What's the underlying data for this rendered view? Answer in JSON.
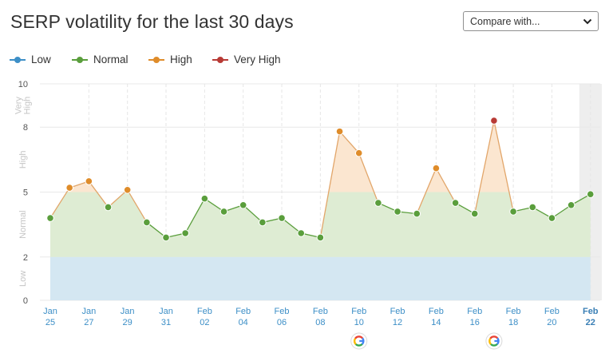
{
  "header": {
    "title": "SERP volatility for the last 30 days",
    "compare_label": "Compare with..."
  },
  "legend": [
    {
      "label": "Low",
      "color": "#3d8fc7"
    },
    {
      "label": "Normal",
      "color": "#5a9e3c"
    },
    {
      "label": "High",
      "color": "#df8c2a"
    },
    {
      "label": "Very High",
      "color": "#b83a35"
    }
  ],
  "zone_colors": {
    "low": "#d4e7f2",
    "normal": "#deecd3",
    "high": "#fbe6d0",
    "very_high": "#f6d7d3"
  },
  "google_update_icon": "google-g-icon",
  "chart_data": {
    "type": "area",
    "ylim": [
      0,
      10
    ],
    "yticks": [
      0,
      2,
      5,
      8,
      10
    ],
    "zones": [
      {
        "label": "Low",
        "from": 0,
        "to": 2
      },
      {
        "label": "Normal",
        "from": 2,
        "to": 5
      },
      {
        "label": "High",
        "from": 5,
        "to": 8
      },
      {
        "label": "Very High",
        "from": 8,
        "to": 10
      }
    ],
    "x_ticks": [
      {
        "idx": 0,
        "label": "Jan",
        "day": "25",
        "today": false
      },
      {
        "idx": 2,
        "label": "Jan",
        "day": "27",
        "today": false
      },
      {
        "idx": 4,
        "label": "Jan",
        "day": "29",
        "today": false
      },
      {
        "idx": 6,
        "label": "Jan",
        "day": "31",
        "today": false
      },
      {
        "idx": 8,
        "label": "Feb",
        "day": "02",
        "today": false
      },
      {
        "idx": 10,
        "label": "Feb",
        "day": "04",
        "today": false
      },
      {
        "idx": 12,
        "label": "Feb",
        "day": "06",
        "today": false
      },
      {
        "idx": 14,
        "label": "Feb",
        "day": "08",
        "today": false
      },
      {
        "idx": 16,
        "label": "Feb",
        "day": "10",
        "today": false
      },
      {
        "idx": 18,
        "label": "Feb",
        "day": "12",
        "today": false
      },
      {
        "idx": 20,
        "label": "Feb",
        "day": "14",
        "today": false
      },
      {
        "idx": 22,
        "label": "Feb",
        "day": "16",
        "today": false
      },
      {
        "idx": 24,
        "label": "Feb",
        "day": "18",
        "today": false
      },
      {
        "idx": 26,
        "label": "Feb",
        "day": "20",
        "today": false
      },
      {
        "idx": 28,
        "label": "Feb",
        "day": "22",
        "today": true
      }
    ],
    "series": [
      {
        "x": [
          "Jan 25",
          "Jan 26",
          "Jan 27",
          "Jan 28",
          "Jan 29",
          "Jan 30",
          "Jan 31",
          "Feb 01",
          "Feb 02",
          "Feb 03",
          "Feb 04",
          "Feb 05",
          "Feb 06",
          "Feb 07",
          "Feb 08",
          "Feb 09",
          "Feb 10",
          "Feb 11",
          "Feb 12",
          "Feb 13",
          "Feb 14",
          "Feb 15",
          "Feb 16",
          "Feb 17",
          "Feb 18",
          "Feb 19",
          "Feb 20",
          "Feb 21",
          "Feb 22"
        ],
        "values": [
          3.8,
          5.2,
          5.5,
          4.3,
          5.1,
          3.6,
          2.9,
          3.1,
          4.7,
          4.1,
          4.4,
          3.6,
          3.8,
          3.1,
          2.9,
          7.8,
          6.8,
          4.5,
          4.1,
          4.0,
          6.1,
          4.5,
          4.0,
          8.3,
          4.1,
          4.3,
          3.8,
          4.4,
          4.9
        ]
      }
    ],
    "google_updates": [
      "Feb 10",
      "Feb 17"
    ]
  }
}
